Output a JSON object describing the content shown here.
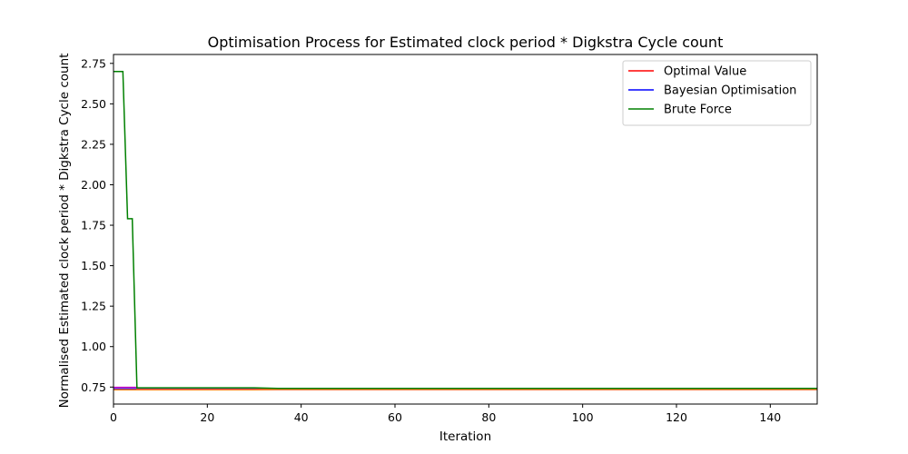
{
  "chart_data": {
    "type": "line",
    "title": "Optimisation Process for Estimated clock period * Digkstra Cycle count",
    "xlabel": "Iteration",
    "ylabel": "Normalised Estimated clock period * Digkstra Cycle count",
    "xlim": [
      0,
      150
    ],
    "ylim": [
      0.645,
      2.805
    ],
    "xticks": [
      0,
      20,
      40,
      60,
      80,
      100,
      120,
      140
    ],
    "yticks": [
      0.75,
      1.0,
      1.25,
      1.5,
      1.75,
      2.0,
      2.25,
      2.5,
      2.75
    ],
    "grid": false,
    "legend_position": "top-right",
    "series": [
      {
        "name": "Optimal Value",
        "color": "#ff0000",
        "x": [
          0,
          150
        ],
        "y": [
          0.735,
          0.735
        ],
        "in_legend": true
      },
      {
        "name": "Bayesian Optimisation",
        "color": "#0000ff",
        "x": [
          0,
          150
        ],
        "y": [
          0.738,
          0.738
        ],
        "in_legend": true
      },
      {
        "name": "",
        "color": "#bf00bf",
        "x": [
          0,
          5,
          5,
          150
        ],
        "y": [
          0.748,
          0.748,
          0.737,
          0.737
        ],
        "in_legend": false
      },
      {
        "name": "",
        "color": "#ff7f0e",
        "x": [
          0,
          30,
          35,
          150
        ],
        "y": [
          0.733,
          0.733,
          0.736,
          0.736
        ],
        "in_legend": false
      },
      {
        "name": "Brute Force",
        "color": "#008000",
        "x": [
          0,
          2,
          2,
          3,
          3,
          4,
          4,
          5,
          5,
          30,
          35,
          150
        ],
        "y": [
          2.7,
          2.7,
          2.7,
          1.79,
          1.79,
          1.79,
          1.79,
          0.745,
          0.745,
          0.745,
          0.742,
          0.742
        ],
        "in_legend": true
      }
    ]
  }
}
